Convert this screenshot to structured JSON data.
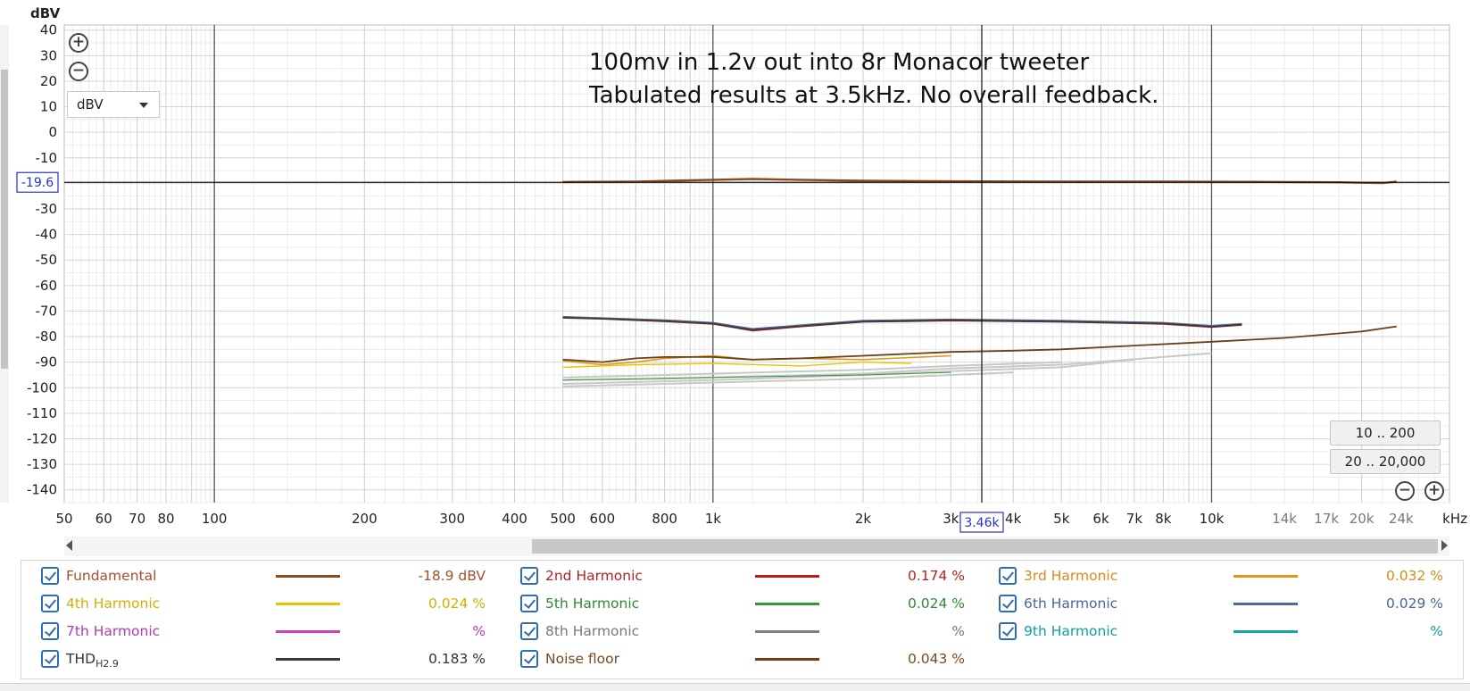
{
  "chart_data": {
    "type": "line",
    "ylabel": "dBV",
    "xlabel": "",
    "xunit_label": "kHz",
    "x_scale": "log",
    "xlim": [
      50,
      30000
    ],
    "ylim": [
      -145,
      42
    ],
    "grid": true,
    "y_ticks": [
      40,
      30,
      20,
      10,
      0,
      -10,
      -20,
      -30,
      -40,
      -50,
      -60,
      -70,
      -80,
      -90,
      -100,
      -110,
      -120,
      -130,
      -140
    ],
    "x_ticks": [
      {
        "v": 50,
        "label": "50"
      },
      {
        "v": 60,
        "label": "60"
      },
      {
        "v": 70,
        "label": "70"
      },
      {
        "v": 80,
        "label": "80"
      },
      {
        "v": 100,
        "label": "100"
      },
      {
        "v": 200,
        "label": "200"
      },
      {
        "v": 300,
        "label": "300"
      },
      {
        "v": 400,
        "label": "400"
      },
      {
        "v": 500,
        "label": "500"
      },
      {
        "v": 600,
        "label": "600"
      },
      {
        "v": 800,
        "label": "800"
      },
      {
        "v": 1000,
        "label": "1k"
      },
      {
        "v": 2000,
        "label": "2k"
      },
      {
        "v": 3000,
        "label": "3k"
      },
      {
        "v": 4000,
        "label": "4k"
      },
      {
        "v": 5000,
        "label": "5k"
      },
      {
        "v": 6000,
        "label": "6k"
      },
      {
        "v": 7000,
        "label": "7k"
      },
      {
        "v": 8000,
        "label": "8k"
      },
      {
        "v": 10000,
        "label": "10k"
      },
      {
        "v": 14000,
        "label": "14k",
        "muted": true
      },
      {
        "v": 17000,
        "label": "17k",
        "muted": true
      },
      {
        "v": 20000,
        "label": "20k",
        "muted": true
      },
      {
        "v": 24000,
        "label": "24k",
        "muted": true
      }
    ],
    "cursor": {
      "x": 3460,
      "x_label": "3.46k",
      "y": -19.6,
      "y_label": "-19.6"
    },
    "annotations": [
      "100mv in 1.2v out into 8r Monacor tweeter",
      "Tabulated results at 3.5kHz. No overall feedback."
    ],
    "series": [
      {
        "name": "Fundamental",
        "color": "#8b4a1c",
        "width": 2.4,
        "x": [
          500,
          700,
          1000,
          1200,
          1500,
          2000,
          3000,
          5000,
          8000,
          12000,
          18000,
          22000,
          23500
        ],
        "y": [
          -19.5,
          -19.3,
          -18.6,
          -18.3,
          -18.6,
          -19.0,
          -19.2,
          -19.3,
          -19.3,
          -19.4,
          -19.6,
          -19.9,
          -19.3
        ]
      },
      {
        "name": "2nd Harmonic",
        "color": "#c0191b",
        "width": 2.0,
        "x": [
          500,
          600,
          800,
          1000,
          1200,
          1500,
          2000,
          3000,
          5000,
          8000,
          10000,
          11500
        ],
        "y": [
          -72.6,
          -73.0,
          -74.0,
          -75.0,
          -77.6,
          -76.0,
          -74.2,
          -73.7,
          -74.2,
          -75.0,
          -76.2,
          -75.4
        ]
      },
      {
        "name": "3rd Harmonic",
        "color": "#e39420",
        "width": 1.6,
        "x": [
          500,
          600,
          700,
          800,
          1000,
          1200,
          1500,
          2000,
          3000
        ],
        "y": [
          -89.5,
          -91.0,
          -90.0,
          -88.5,
          -87.5,
          -89.0,
          -88.5,
          -89.0,
          -87.5
        ]
      },
      {
        "name": "4th Harmonic",
        "color": "#e8c400",
        "width": 1.4,
        "x": [
          500,
          700,
          1000,
          1500,
          2000,
          2500
        ],
        "y": [
          -92.0,
          -91.0,
          -90.5,
          -91.5,
          -90.0,
          -90.5
        ]
      },
      {
        "name": "5th Harmonic",
        "color": "#2f9a3a",
        "width": 1.0,
        "x": [
          500,
          1000,
          2000,
          3000
        ],
        "y": [
          -97.0,
          -96.0,
          -95.0,
          -94.0
        ]
      },
      {
        "name": "6th Harmonic",
        "color": "#4d6a9a",
        "width": 2.0,
        "x": [
          500,
          600,
          800,
          1000,
          1200,
          1500,
          2000,
          3000,
          5000,
          8000,
          10000,
          11500
        ],
        "y": [
          -72.3,
          -72.8,
          -73.6,
          -74.6,
          -77.0,
          -75.6,
          -73.8,
          -73.3,
          -73.8,
          -74.6,
          -75.8,
          -75.0
        ]
      },
      {
        "name": "7th Harmonic",
        "color": "#c93fc9",
        "width": 1.0,
        "x": [],
        "y": []
      },
      {
        "name": "8th Harmonic",
        "color": "#7f7f7f",
        "width": 1.0,
        "x": [],
        "y": []
      },
      {
        "name": "9th Harmonic",
        "color": "#14a6a6",
        "width": 1.0,
        "x": [],
        "y": []
      },
      {
        "name": "THD",
        "color": "#3a3a3a",
        "width": 1.6,
        "x": [
          500,
          600,
          800,
          1000,
          1200,
          1500,
          2000,
          3000,
          5000,
          8000,
          10000,
          11500
        ],
        "y": [
          -72.5,
          -73.0,
          -73.9,
          -74.9,
          -77.4,
          -75.9,
          -74.1,
          -73.6,
          -74.1,
          -74.9,
          -76.1,
          -75.3
        ]
      },
      {
        "name": "Noise floor",
        "color": "#6b3f17",
        "width": 1.8,
        "x": [
          500,
          600,
          700,
          800,
          1000,
          1200,
          1500,
          2000,
          3000,
          4000,
          5000,
          7000,
          10000,
          14000,
          20000,
          23500
        ],
        "y": [
          -89.0,
          -90.0,
          -88.5,
          -88.0,
          -88.0,
          -89.0,
          -88.5,
          -87.5,
          -86.0,
          -85.5,
          -85.0,
          -83.5,
          -82.0,
          -80.5,
          -78.0,
          -76.0
        ]
      }
    ],
    "gray_traces": [
      {
        "x": [
          500,
          800,
          1000,
          2000,
          3000,
          5000,
          8000,
          10000
        ],
        "y": [
          -97.0,
          -96.5,
          -96.0,
          -94.5,
          -92.5,
          -91.0,
          -88.0,
          -86.5
        ]
      },
      {
        "x": [
          500,
          800,
          1000,
          2000,
          3000,
          5000,
          7000
        ],
        "y": [
          -98.5,
          -97.5,
          -97.0,
          -95.0,
          -93.5,
          -92.0,
          -89.0
        ]
      },
      {
        "x": [
          500,
          800,
          1000,
          2000,
          3000,
          4000
        ],
        "y": [
          -99.5,
          -98.5,
          -98.0,
          -96.5,
          -95.0,
          -94.0
        ]
      },
      {
        "x": [
          500,
          800,
          1000,
          2000,
          3000,
          5000
        ],
        "y": [
          -96.0,
          -95.0,
          -94.5,
          -93.0,
          -91.5,
          -90.0
        ]
      }
    ]
  },
  "controls": {
    "unit_select": "dBV",
    "range_buttons": [
      "10 .. 200",
      "20 .. 20,000"
    ]
  },
  "legend": {
    "items": [
      {
        "name": "Fundamental",
        "value": "-18.9 dBV",
        "color": "#a0522d",
        "line_color": "#8b4a1c"
      },
      {
        "name": "2nd Harmonic",
        "value": "0.174 %",
        "color": "#b22222",
        "line_color": "#c0191b"
      },
      {
        "name": "3rd Harmonic",
        "value": "0.032 %",
        "color": "#d98a1a",
        "line_color": "#e39420"
      },
      {
        "name": "4th Harmonic",
        "value": "0.024 %",
        "color": "#d4b000",
        "line_color": "#e8c400"
      },
      {
        "name": "5th Harmonic",
        "value": "0.024 %",
        "color": "#2f8a33",
        "line_color": "#2f9a3a"
      },
      {
        "name": "6th Harmonic",
        "value": "0.029 %",
        "color": "#4a6796",
        "line_color": "#4d6a9a"
      },
      {
        "name": "7th Harmonic",
        "value": "%",
        "color": "#b43bb4",
        "line_color": "#c93fc9"
      },
      {
        "name": "8th Harmonic",
        "value": "%",
        "color": "#7a7a7a",
        "line_color": "#7f7f7f"
      },
      {
        "name": "9th Harmonic",
        "value": "%",
        "color": "#139e9e",
        "line_color": "#14a6a6"
      },
      {
        "name": "THD",
        "sub": "H2.9",
        "value": "0.183 %",
        "color": "#333333",
        "line_color": "#3a3a3a"
      },
      {
        "name": "Noise floor",
        "value": "0.043 %",
        "color": "#7a4a1e",
        "line_color": "#6b3f17"
      }
    ]
  }
}
